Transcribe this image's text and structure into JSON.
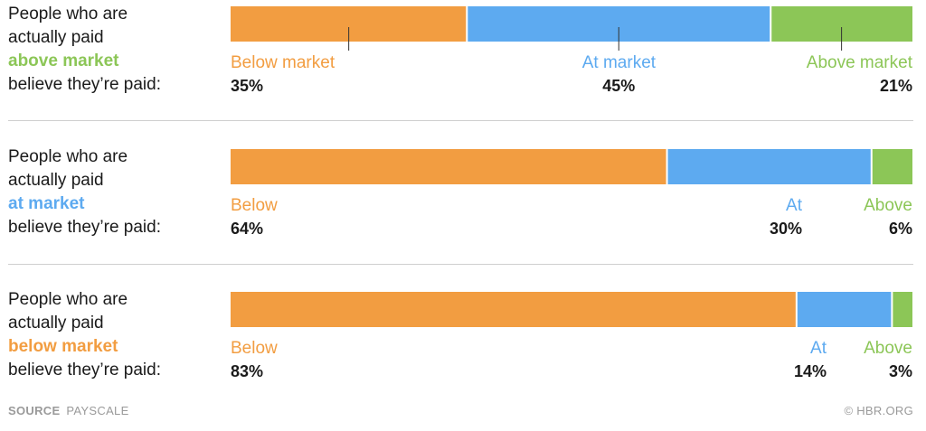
{
  "colors": {
    "below": "#f29d41",
    "at": "#5daaf0",
    "above": "#8cc657",
    "text": "#1a1a1a",
    "muted": "#9a9a9a"
  },
  "chart_data": [
    {
      "type": "bar",
      "orientation": "horizontal",
      "stacked": true,
      "description": {
        "line1": "People who are",
        "line2": "actually paid",
        "highlight": "above market",
        "line4": "believe they’re paid:"
      },
      "segments": [
        {
          "key": "below",
          "label": "Below market",
          "value": 35,
          "value_label": "35%"
        },
        {
          "key": "at",
          "label": "At market",
          "value": 45,
          "value_label": "45%"
        },
        {
          "key": "above",
          "label": "Above market",
          "value": 21,
          "value_label": "21%"
        }
      ]
    },
    {
      "type": "bar",
      "orientation": "horizontal",
      "stacked": true,
      "description": {
        "line1": "People who are",
        "line2": "actually paid",
        "highlight": "at market",
        "line4": "believe they’re paid:"
      },
      "segments": [
        {
          "key": "below",
          "label": "Below",
          "value": 64,
          "value_label": "64%"
        },
        {
          "key": "at",
          "label": "At",
          "value": 30,
          "value_label": "30%"
        },
        {
          "key": "above",
          "label": "Above",
          "value": 6,
          "value_label": "6%"
        }
      ]
    },
    {
      "type": "bar",
      "orientation": "horizontal",
      "stacked": true,
      "description": {
        "line1": "People who are",
        "line2": "actually paid",
        "highlight": "below market",
        "line4": "believe they’re paid:"
      },
      "segments": [
        {
          "key": "below",
          "label": "Below",
          "value": 83,
          "value_label": "83%"
        },
        {
          "key": "at",
          "label": "At",
          "value": 14,
          "value_label": "14%"
        },
        {
          "key": "above",
          "label": "Above",
          "value": 3,
          "value_label": "3%"
        }
      ]
    }
  ],
  "footer": {
    "source_key": "SOURCE",
    "source_value": "PAYSCALE",
    "credit": "© HBR.ORG"
  }
}
